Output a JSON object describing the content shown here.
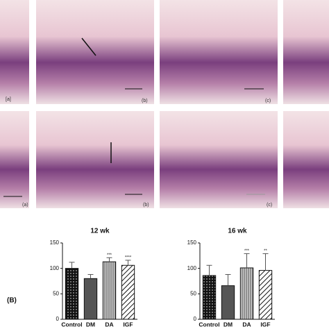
{
  "panel_labels": [
    "[a]",
    "(b)",
    "(c)",
    "(a)",
    "(b)",
    "(c)"
  ],
  "figure_label": "(B)",
  "chart_data": [
    {
      "type": "bar",
      "title": "12 wk",
      "categories": [
        "Control",
        "DM",
        "DA",
        "IGF"
      ],
      "values": [
        100,
        80,
        113,
        106
      ],
      "errors": [
        12,
        8,
        8,
        10
      ],
      "annotations": [
        null,
        null,
        "***",
        "****"
      ],
      "colors": [
        "#1a1a1a",
        "#555555",
        "#b0b0b0",
        "#ffffff"
      ],
      "patterns": [
        "dots",
        "solid",
        "vertical",
        "diagonal"
      ],
      "ylim": [
        0,
        150
      ],
      "yticks": [
        0,
        50,
        100,
        150
      ]
    },
    {
      "type": "bar",
      "title": "16 wk",
      "categories": [
        "Control",
        "DM",
        "DA",
        "IGF"
      ],
      "values": [
        86,
        66,
        101,
        96
      ],
      "errors": [
        20,
        22,
        28,
        33
      ],
      "annotations": [
        null,
        null,
        "***",
        "**"
      ],
      "colors": [
        "#1a1a1a",
        "#555555",
        "#b0b0b0",
        "#ffffff"
      ],
      "patterns": [
        "dots",
        "solid",
        "vertical",
        "diagonal"
      ],
      "ylim": [
        0,
        150
      ],
      "yticks": [
        0,
        50,
        100,
        150
      ]
    }
  ]
}
